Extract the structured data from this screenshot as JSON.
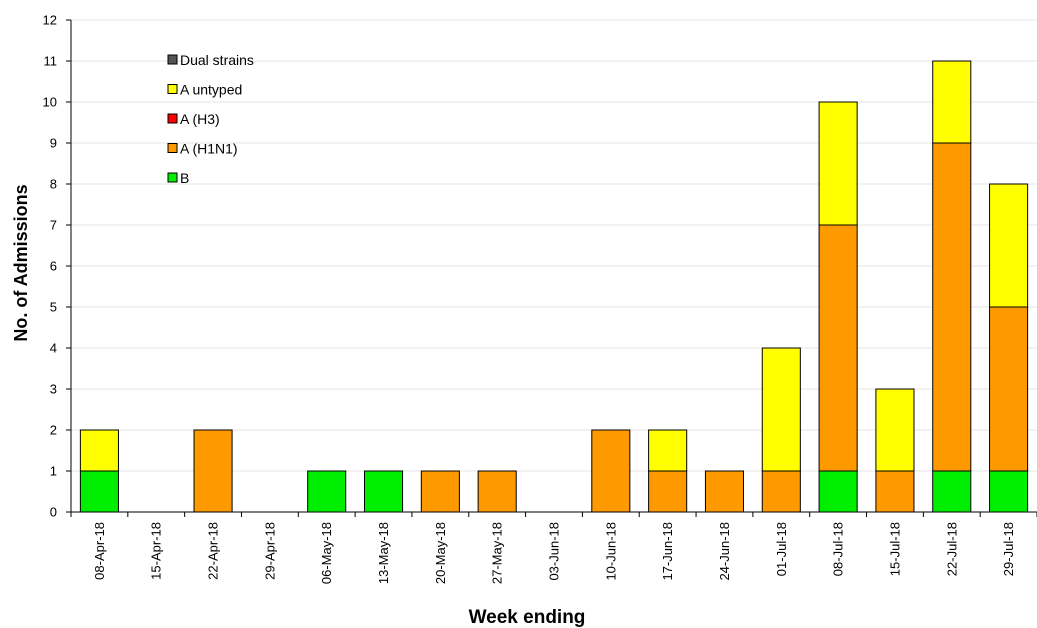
{
  "chart_data": {
    "type": "bar",
    "stacked": true,
    "title": "",
    "xlabel": "Week ending",
    "ylabel": "No. of Admissions",
    "ylim": [
      0,
      12
    ],
    "yticks": [
      0,
      1,
      2,
      3,
      4,
      5,
      6,
      7,
      8,
      9,
      10,
      11,
      12
    ],
    "grid": true,
    "legend_position": "top-left",
    "categories": [
      "08-Apr-18",
      "15-Apr-18",
      "22-Apr-18",
      "29-Apr-18",
      "06-May-18",
      "13-May-18",
      "20-May-18",
      "27-May-18",
      "03-Jun-18",
      "10-Jun-18",
      "17-Jun-18",
      "24-Jun-18",
      "01-Jul-18",
      "08-Jul-18",
      "15-Jul-18",
      "22-Jul-18",
      "29-Jul-18"
    ],
    "series": [
      {
        "name": "B",
        "color": "#00ee00",
        "values": [
          1,
          0,
          0,
          0,
          1,
          1,
          0,
          0,
          0,
          0,
          0,
          0,
          0,
          1,
          0,
          1,
          1
        ]
      },
      {
        "name": "A (H1N1)",
        "color": "#ff9900",
        "values": [
          0,
          0,
          2,
          0,
          0,
          0,
          1,
          1,
          0,
          2,
          1,
          1,
          1,
          6,
          1,
          8,
          4
        ]
      },
      {
        "name": "A (H3)",
        "color": "#ff0000",
        "values": [
          0,
          0,
          0,
          0,
          0,
          0,
          0,
          0,
          0,
          0,
          0,
          0,
          0,
          0,
          0,
          0,
          0
        ]
      },
      {
        "name": "A untyped",
        "color": "#ffff00",
        "values": [
          1,
          0,
          0,
          0,
          0,
          0,
          0,
          0,
          0,
          0,
          1,
          0,
          3,
          3,
          2,
          2,
          3
        ]
      },
      {
        "name": "Dual strains",
        "color": "#555555",
        "values": [
          0,
          0,
          0,
          0,
          0,
          0,
          0,
          0,
          0,
          0,
          0,
          0,
          0,
          0,
          0,
          0,
          0
        ]
      }
    ],
    "legend_order": [
      "Dual strains",
      "A untyped",
      "A (H3)",
      "A (H1N1)",
      "B"
    ]
  }
}
